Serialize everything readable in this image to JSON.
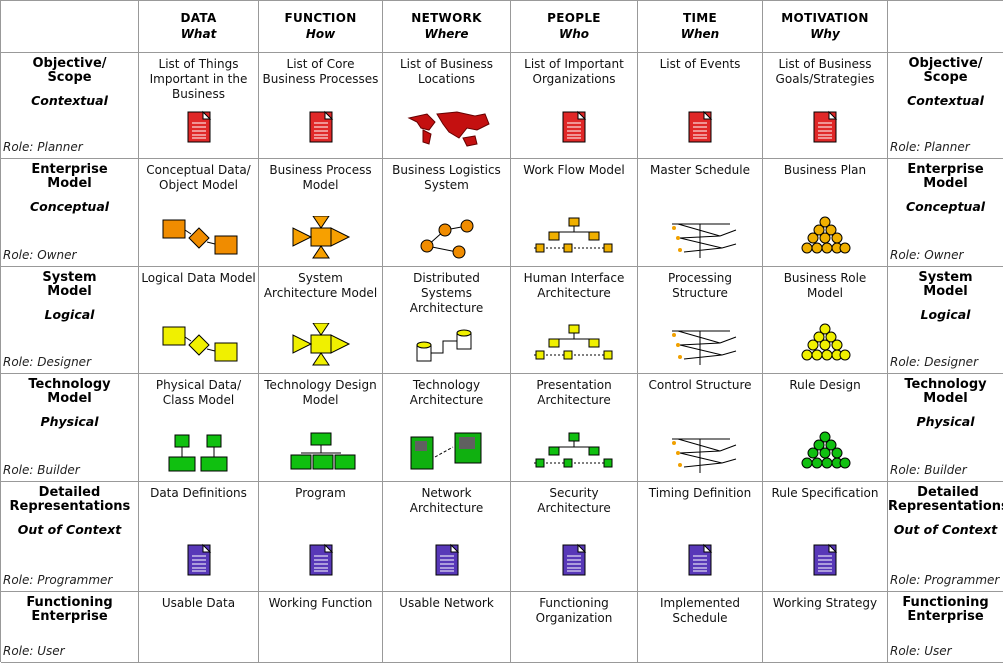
{
  "header": {
    "columns": [
      {
        "name": "DATA",
        "question": "What"
      },
      {
        "name": "FUNCTION",
        "question": "How"
      },
      {
        "name": "NETWORK",
        "question": "Where"
      },
      {
        "name": "PEOPLE",
        "question": "Who"
      },
      {
        "name": "TIME",
        "question": "When"
      },
      {
        "name": "MOTIVATION",
        "question": "Why"
      }
    ]
  },
  "rows": [
    {
      "title": "Objective/ Scope",
      "perspective": "Contextual",
      "role": "Role: Planner",
      "cells": [
        "List of Things Important in the Business",
        "List of Core Business Processes",
        "List of Business Locations",
        "List of Important Organizations",
        "List of Events",
        "List of Business Goals/Strategies"
      ]
    },
    {
      "title": "Enterprise Model",
      "perspective": "Conceptual",
      "role": "Role: Owner",
      "cells": [
        "Conceptual Data/ Object Model",
        "Business Process Model",
        "Business Logistics System",
        "Work Flow Model",
        "Master Schedule",
        "Business Plan"
      ]
    },
    {
      "title": "System Model",
      "perspective": "Logical",
      "role": "Role: Designer",
      "cells": [
        "Logical Data Model",
        "System Architecture Model",
        "Distributed Systems Architecture",
        "Human Interface Architecture",
        "Processing Structure",
        "Business Role Model"
      ]
    },
    {
      "title": "Technology Model",
      "perspective": "Physical",
      "role": "Role: Builder",
      "cells": [
        "Physical Data/ Class Model",
        "Technology Design Model",
        "Technology Architecture",
        "Presentation Architecture",
        "Control Structure",
        "Rule Design"
      ]
    },
    {
      "title": "Detailed Representations",
      "perspective": "Out of Context",
      "role": "Role: Programmer",
      "cells": [
        "Data Definitions",
        "Program",
        "Network Architecture",
        "Security Architecture",
        "Timing Definition",
        "Rule Specification"
      ]
    },
    {
      "title": "Functioning Enterprise",
      "role": "Role: User",
      "cells": [
        "Usable Data",
        "Working Function",
        "Usable Network",
        "Functioning Organization",
        "Implemented Schedule",
        "Working Strategy"
      ]
    }
  ]
}
